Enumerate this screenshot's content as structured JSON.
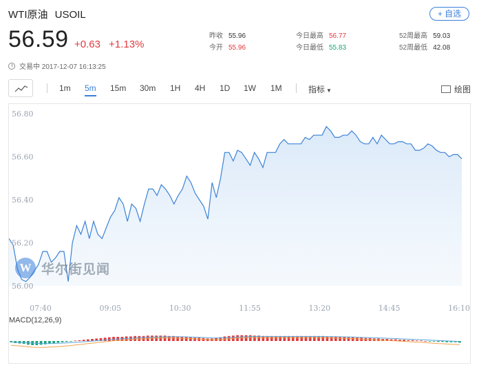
{
  "header": {
    "name": "WTI原油",
    "symbol": "USOIL",
    "add_watch_label": "+ 自选",
    "price": "56.59",
    "change": "+0.63",
    "change_pct": "+1.13%",
    "status": "交易中 2017-12-07 16:13:25"
  },
  "stats": {
    "prev_close_label": "昨收",
    "prev_close": "55.96",
    "open_label": "今开",
    "open": "55.96",
    "high_label": "今日最高",
    "high": "56.77",
    "low_label": "今日最低",
    "low": "55.83",
    "w52_high_label": "52周最高",
    "w52_high": "59.03",
    "w52_low_label": "52周最低",
    "w52_low": "42.08"
  },
  "toolbar": {
    "intervals": [
      "1m",
      "5m",
      "15m",
      "30m",
      "1H",
      "4H",
      "1D",
      "1W",
      "1M"
    ],
    "active_interval": "5m",
    "indicator_label": "指标",
    "draw_label": "绘图"
  },
  "watermark": {
    "logo": "W",
    "text": "华尔街见闻"
  },
  "colors": {
    "line": "#3b82d6",
    "up": "#e03a3e",
    "down": "#19a37a",
    "accent": "#3b7fd9"
  },
  "chart_data": [
    {
      "type": "area",
      "x_tick_labels": [
        "07:40",
        "09:05",
        "10:30",
        "11:55",
        "13:20",
        "14:45",
        "16:10"
      ],
      "y_tick_labels": [
        "56.80",
        "56.60",
        "56.40",
        "56.20",
        "56.00"
      ],
      "ylim": [
        56.0,
        56.8
      ],
      "values": [
        56.22,
        56.19,
        56.08,
        56.03,
        56.02,
        56.04,
        56.07,
        56.1,
        56.16,
        56.16,
        56.11,
        56.13,
        56.16,
        56.16,
        56.02,
        56.2,
        56.28,
        56.24,
        56.3,
        56.22,
        56.3,
        56.24,
        56.22,
        56.27,
        56.32,
        56.35,
        56.41,
        56.38,
        56.3,
        56.38,
        56.36,
        56.3,
        56.38,
        56.45,
        56.45,
        56.42,
        56.47,
        56.45,
        56.42,
        56.38,
        56.42,
        56.45,
        56.51,
        56.48,
        56.43,
        56.4,
        56.37,
        56.31,
        56.48,
        56.41,
        56.5,
        56.62,
        56.62,
        56.58,
        56.63,
        56.62,
        56.59,
        56.56,
        56.62,
        56.59,
        56.55,
        56.62,
        56.62,
        56.62,
        56.66,
        56.68,
        56.66,
        56.66,
        56.66,
        56.66,
        56.69,
        56.68,
        56.7,
        56.7,
        56.7,
        56.74,
        56.72,
        56.69,
        56.69,
        56.7,
        56.7,
        56.72,
        56.7,
        56.67,
        56.66,
        56.66,
        56.69,
        56.66,
        56.7,
        56.68,
        56.66,
        56.66,
        56.67,
        56.67,
        56.66,
        56.66,
        56.63,
        56.63,
        56.64,
        56.66,
        56.65,
        56.63,
        56.62,
        56.62,
        56.6,
        56.61,
        56.61,
        56.59
      ],
      "grid": false,
      "legend": "none"
    },
    {
      "type": "bar",
      "title": "MACD(12,26,9)",
      "histogram": [
        -0.3,
        -0.5,
        -0.6,
        -0.7,
        -0.9,
        -1.0,
        -1.0,
        -0.9,
        -0.8,
        -0.6,
        -0.5,
        -0.4,
        -0.3,
        -0.2,
        -0.1,
        0.1,
        0.2,
        0.3,
        0.4,
        0.5,
        0.6,
        0.7,
        0.8,
        0.9,
        1.0,
        1.0,
        1.0,
        1.1,
        1.1,
        1.2,
        1.2,
        1.2,
        1.3,
        1.3,
        1.3,
        1.3,
        1.3,
        1.2,
        1.2,
        1.1,
        1.0,
        1.0,
        0.9,
        0.8,
        0.8,
        0.7,
        0.6,
        0.6,
        0.7,
        0.9,
        1.1,
        1.2,
        1.3,
        1.4,
        1.4,
        1.4,
        1.4,
        1.3,
        1.3,
        1.2,
        1.2,
        1.2,
        1.2,
        1.2,
        1.2,
        1.2,
        1.2,
        1.2,
        1.2,
        1.2,
        1.2,
        1.2,
        1.2,
        1.2,
        1.1,
        1.1,
        1.1,
        1.0,
        1.0,
        0.9,
        0.9,
        0.8,
        0.8,
        0.7,
        0.7,
        0.6,
        0.6,
        0.5,
        0.5,
        0.4,
        0.4,
        0.3,
        0.3,
        0.2,
        0.2,
        0.1,
        0.1,
        0.0,
        -0.1,
        -0.1,
        -0.2,
        -0.2,
        -0.3,
        -0.3,
        -0.3,
        -0.4
      ]
    }
  ]
}
